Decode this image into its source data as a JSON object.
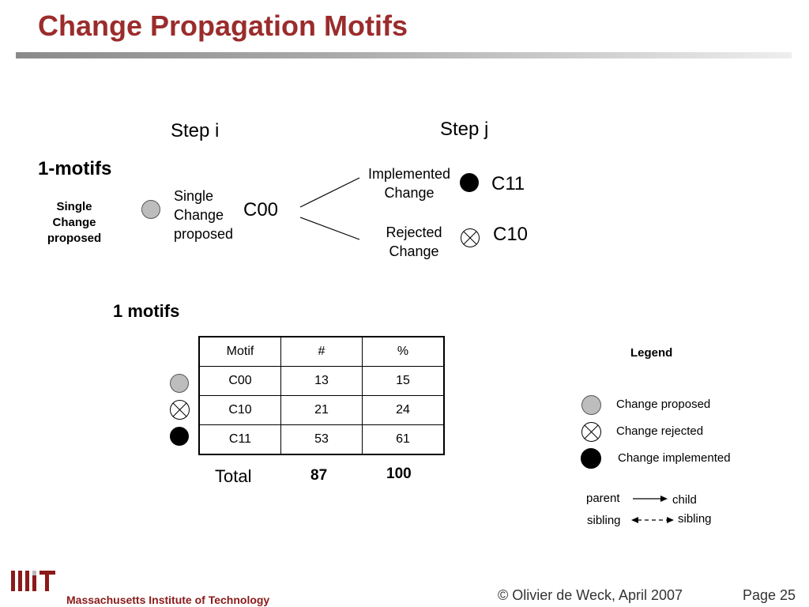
{
  "title": "Change Propagation Motifs",
  "diagram": {
    "step_i": "Step i",
    "step_j": "Step j",
    "heading": "1-motifs",
    "left_label": [
      "Single",
      "Change",
      "proposed"
    ],
    "node_label": [
      "Single",
      "Change",
      "proposed"
    ],
    "c00": "C00",
    "implemented": [
      "Implemented",
      "Change"
    ],
    "rejected": [
      "Rejected",
      "Change"
    ],
    "c11": "C11",
    "c10": "C10"
  },
  "table_section": {
    "heading": "1 motifs",
    "columns": [
      "Motif",
      "#",
      "%"
    ],
    "rows": [
      {
        "motif": "C00",
        "count": "13",
        "pct": "15",
        "icon": "change-proposed"
      },
      {
        "motif": "C10",
        "count": "21",
        "pct": "24",
        "icon": "change-rejected"
      },
      {
        "motif": "C11",
        "count": "53",
        "pct": "61",
        "icon": "change-implemented"
      }
    ],
    "total_label": "Total",
    "total_count": "87",
    "total_pct": "100"
  },
  "legend": {
    "title": "Legend",
    "proposed": "Change proposed",
    "rejected": "Change rejected",
    "implemented": "Change implemented",
    "parent": "parent",
    "child": "child",
    "sibling_left": "sibling",
    "sibling_right": "sibling"
  },
  "footer": {
    "institution": "Massachusetts Institute of Technology",
    "copyright": "© Olivier de Weck, April 2007",
    "page": "Page 25"
  },
  "colors": {
    "title": "#9b2c2c",
    "institution": "#8b1a1a",
    "proposed_fill": "#bdbdbd"
  }
}
